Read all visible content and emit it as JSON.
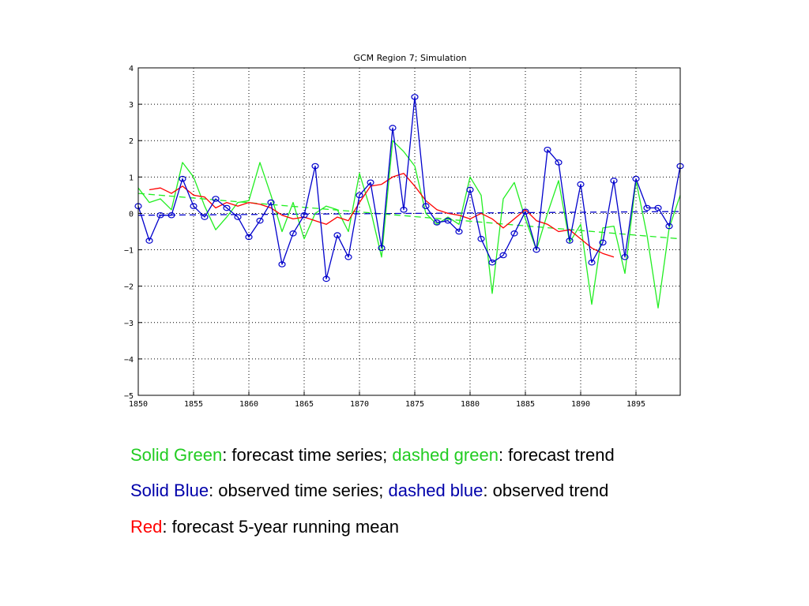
{
  "chart_data": {
    "type": "line",
    "title": "GCM Region 7; Simulation",
    "xlabel": "",
    "ylabel": "",
    "xlim": [
      1850,
      1899
    ],
    "ylim": [
      -5,
      4
    ],
    "grid": true,
    "x_ticks": [
      1850,
      1855,
      1860,
      1865,
      1870,
      1875,
      1880,
      1885,
      1890,
      1895
    ],
    "x_tick_labels": [
      "1850",
      "1855",
      "1860",
      "1865",
      "1870",
      "1875",
      "1880",
      "1885",
      "1890",
      "1895"
    ],
    "y_ticks": [
      4,
      3,
      2,
      1,
      0,
      -1,
      -2,
      -3,
      -4,
      -5
    ],
    "y_tick_labels": [
      "4",
      "3",
      "2",
      "1",
      "0",
      "−1",
      "−2",
      "−3",
      "−4",
      "−5"
    ],
    "series": [
      {
        "key": "observed",
        "style": "solid-markers",
        "color": "#0000cc",
        "x": [
          1850,
          1851,
          1852,
          1853,
          1854,
          1855,
          1856,
          1857,
          1858,
          1859,
          1860,
          1861,
          1862,
          1863,
          1864,
          1865,
          1866,
          1867,
          1868,
          1869,
          1870,
          1871,
          1872,
          1873,
          1874,
          1875,
          1876,
          1877,
          1878,
          1879,
          1880,
          1881,
          1882,
          1883,
          1884,
          1885,
          1886,
          1887,
          1888,
          1889,
          1890,
          1891,
          1892,
          1893,
          1894,
          1895,
          1896,
          1897,
          1898,
          1899
        ],
        "y": [
          0.2,
          -0.75,
          -0.05,
          -0.05,
          0.95,
          0.2,
          -0.1,
          0.4,
          0.15,
          -0.1,
          -0.65,
          -0.2,
          0.3,
          -1.4,
          -0.55,
          -0.05,
          1.3,
          -1.8,
          -0.6,
          -1.2,
          0.5,
          0.85,
          -0.95,
          2.35,
          0.1,
          3.2,
          0.2,
          -0.25,
          -0.2,
          -0.5,
          0.65,
          -0.7,
          -1.35,
          -1.15,
          -0.55,
          0.05,
          -1.0,
          1.75,
          1.4,
          -0.75,
          0.8,
          -1.35,
          -0.8,
          0.9,
          -1.2,
          0.95,
          0.15,
          0.15,
          -0.35,
          1.3
        ]
      },
      {
        "key": "forecast",
        "style": "solid",
        "color": "#22ee22",
        "x": [
          1850,
          1851,
          1852,
          1853,
          1854,
          1855,
          1856,
          1857,
          1858,
          1859,
          1860,
          1861,
          1862,
          1863,
          1864,
          1865,
          1866,
          1867,
          1868,
          1869,
          1870,
          1871,
          1872,
          1873,
          1874,
          1875,
          1876,
          1877,
          1878,
          1879,
          1880,
          1881,
          1882,
          1883,
          1884,
          1885,
          1886,
          1887,
          1888,
          1889,
          1890,
          1891,
          1892,
          1893,
          1894,
          1895,
          1896,
          1897,
          1898,
          1899
        ],
        "y": [
          0.7,
          0.3,
          0.4,
          0.1,
          1.4,
          1.0,
          0.2,
          -0.45,
          -0.1,
          0.3,
          0.35,
          1.4,
          0.5,
          -0.5,
          0.3,
          -0.7,
          0.0,
          0.2,
          0.1,
          -0.5,
          1.1,
          0.1,
          -1.2,
          2.0,
          1.7,
          1.3,
          0.0,
          -0.3,
          -0.1,
          -0.3,
          1.0,
          0.5,
          -2.2,
          0.4,
          0.85,
          -0.15,
          -1.0,
          0.0,
          0.9,
          -0.8,
          -0.3,
          -2.5,
          -0.4,
          -0.35,
          -1.65,
          0.9,
          -0.6,
          -2.6,
          -0.4,
          0.5
        ]
      },
      {
        "key": "forecast_running_mean",
        "style": "solid",
        "color": "#ff0000",
        "x": [
          1851,
          1852,
          1853,
          1854,
          1855,
          1856,
          1857,
          1858,
          1859,
          1860,
          1861,
          1862,
          1863,
          1864,
          1865,
          1866,
          1867,
          1868,
          1869,
          1870,
          1871,
          1872,
          1873,
          1874,
          1875,
          1876,
          1877,
          1878,
          1879,
          1880,
          1881,
          1882,
          1883,
          1884,
          1885,
          1886,
          1887,
          1888,
          1889,
          1890,
          1891,
          1892,
          1893,
          1894,
          1895,
          1896,
          1897,
          1898,
          1899
        ],
        "y": [
          0.65,
          0.7,
          0.55,
          0.75,
          0.5,
          0.45,
          0.15,
          0.3,
          0.2,
          0.3,
          0.25,
          0.15,
          -0.05,
          -0.15,
          -0.1,
          -0.2,
          -0.3,
          -0.1,
          -0.2,
          0.3,
          0.75,
          0.8,
          1.0,
          1.1,
          0.75,
          0.35,
          0.1,
          0.0,
          -0.05,
          -0.15,
          0.0,
          -0.15,
          -0.4,
          -0.15,
          0.1,
          -0.2,
          -0.3,
          -0.5,
          -0.45,
          -0.7,
          -0.95,
          -1.1,
          -1.2,
          null,
          null,
          null,
          null,
          null,
          null
        ]
      },
      {
        "key": "forecast_trend",
        "style": "dashed",
        "color": "#22ee22",
        "x": [
          1850,
          1899
        ],
        "y": [
          0.55,
          -0.7
        ]
      },
      {
        "key": "observed_trend",
        "style": "dashed",
        "color": "#0000cc",
        "x": [
          1850,
          1899
        ],
        "y": [
          -0.05,
          0.05
        ]
      }
    ]
  },
  "legend": {
    "line1": {
      "green_term": "Solid Green",
      "green_desc": ": forecast time series; ",
      "dashed_term": "dashed green",
      "dashed_desc": ": forecast trend"
    },
    "line2": {
      "blue_term": "Solid Blue",
      "blue_desc": ": observed time series; ",
      "dashed_term": "dashed blue",
      "dashed_desc": ": observed trend"
    },
    "line3": {
      "red_term": "Red",
      "red_desc": ": forecast 5-year running mean"
    }
  }
}
